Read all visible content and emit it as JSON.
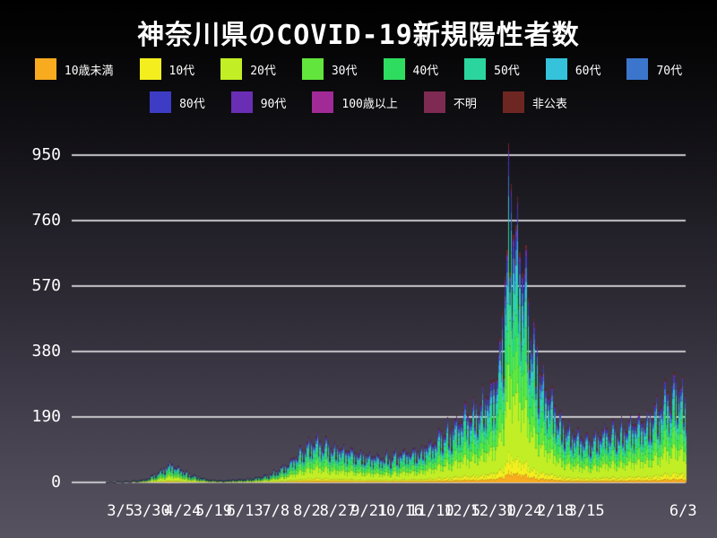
{
  "page": {
    "background_top": "#000000",
    "background_bottom": "#565260",
    "text_color": "#ffffff",
    "gridline_color": "#c9c9cd"
  },
  "chart_data": {
    "type": "bar",
    "stacked": true,
    "title": "神奈川県のCOVID-19新規陽性者数",
    "xlabel": "",
    "ylabel": "",
    "ylim": [
      0,
      1000
    ],
    "y_ticks": [
      950,
      760,
      570,
      380,
      190,
      0
    ],
    "grid": "horizontal",
    "legend_position": "top",
    "x_start_date": "2020-02-22",
    "x_end_date": "2021-06-03",
    "total_days": 467,
    "sample_interval_days": 3,
    "peak_value": 985,
    "peak_date": "2021-01-11",
    "x_tick_labels": [
      {
        "label": "3/5",
        "day": 12
      },
      {
        "label": "3/30",
        "day": 37
      },
      {
        "label": "4/24",
        "day": 62
      },
      {
        "label": "5/19",
        "day": 87
      },
      {
        "label": "6/13",
        "day": 112
      },
      {
        "label": "7/8",
        "day": 137
      },
      {
        "label": "8/2",
        "day": 162
      },
      {
        "label": "8/27",
        "day": 187
      },
      {
        "label": "9/21",
        "day": 212
      },
      {
        "label": "10/16",
        "day": 237
      },
      {
        "label": "11/10",
        "day": 262
      },
      {
        "label": "12/5",
        "day": 287
      },
      {
        "label": "12/30",
        "day": 312
      },
      {
        "label": "1/24",
        "day": 337
      },
      {
        "label": "2/18",
        "day": 362
      },
      {
        "label": "3/15",
        "day": 387
      },
      {
        "label": "6/3",
        "day": 465
      }
    ],
    "groups": [
      {
        "label": "10歳未満",
        "color": "#f8ab1e",
        "share": 0.035
      },
      {
        "label": "10代",
        "color": "#f4ee1f",
        "share": 0.055
      },
      {
        "label": "20代",
        "color": "#c2ee25",
        "share": 0.26
      },
      {
        "label": "30代",
        "color": "#62e53c",
        "share": 0.16
      },
      {
        "label": "40代",
        "color": "#2edd60",
        "share": 0.14
      },
      {
        "label": "50代",
        "color": "#2bd69e",
        "share": 0.12
      },
      {
        "label": "60代",
        "color": "#34c3da",
        "share": 0.075
      },
      {
        "label": "70代",
        "color": "#3b76cc",
        "share": 0.06
      },
      {
        "label": "80代",
        "color": "#3d3cc4",
        "share": 0.045
      },
      {
        "label": "90代",
        "color": "#6a2eb5",
        "share": 0.025
      },
      {
        "label": "100歳以上",
        "color": "#a12a96",
        "share": 0.004
      },
      {
        "label": "不明",
        "color": "#7e2a52",
        "share": 0.004
      },
      {
        "label": "非公表",
        "color": "#6e2623",
        "share": 0.017
      }
    ],
    "legend_rows": [
      8,
      5
    ],
    "weekly_pattern": [
      0.72,
      0.9,
      1.0,
      0.62,
      0.88,
      0.55,
      0.8
    ],
    "totals": [
      1,
      2,
      1,
      3,
      2,
      4,
      3,
      6,
      5,
      8,
      10,
      16,
      22,
      30,
      40,
      48,
      58,
      62,
      55,
      48,
      42,
      36,
      30,
      25,
      20,
      16,
      13,
      10,
      8,
      9,
      7,
      6,
      8,
      7,
      10,
      9,
      12,
      11,
      14,
      13,
      16,
      18,
      22,
      26,
      32,
      38,
      45,
      52,
      60,
      70,
      82,
      95,
      108,
      120,
      132,
      140,
      148,
      138,
      128,
      135,
      125,
      118,
      122,
      112,
      105,
      115,
      100,
      108,
      95,
      102,
      90,
      85,
      95,
      80,
      88,
      95,
      85,
      100,
      92,
      105,
      98,
      110,
      100,
      115,
      108,
      120,
      132,
      125,
      145,
      158,
      172,
      190,
      178,
      205,
      195,
      220,
      235,
      225,
      250,
      268,
      255,
      285,
      310,
      295,
      340,
      420,
      560,
      750,
      985,
      900,
      830,
      760,
      690,
      610,
      530,
      460,
      400,
      350,
      310,
      280,
      255,
      230,
      210,
      195,
      180,
      170,
      160,
      150,
      155,
      145,
      150,
      158,
      165,
      172,
      180,
      172,
      185,
      178,
      192,
      185,
      200,
      192,
      210,
      200,
      222,
      212,
      235,
      255,
      240,
      275,
      300,
      285,
      320,
      340,
      310,
      290
    ]
  }
}
